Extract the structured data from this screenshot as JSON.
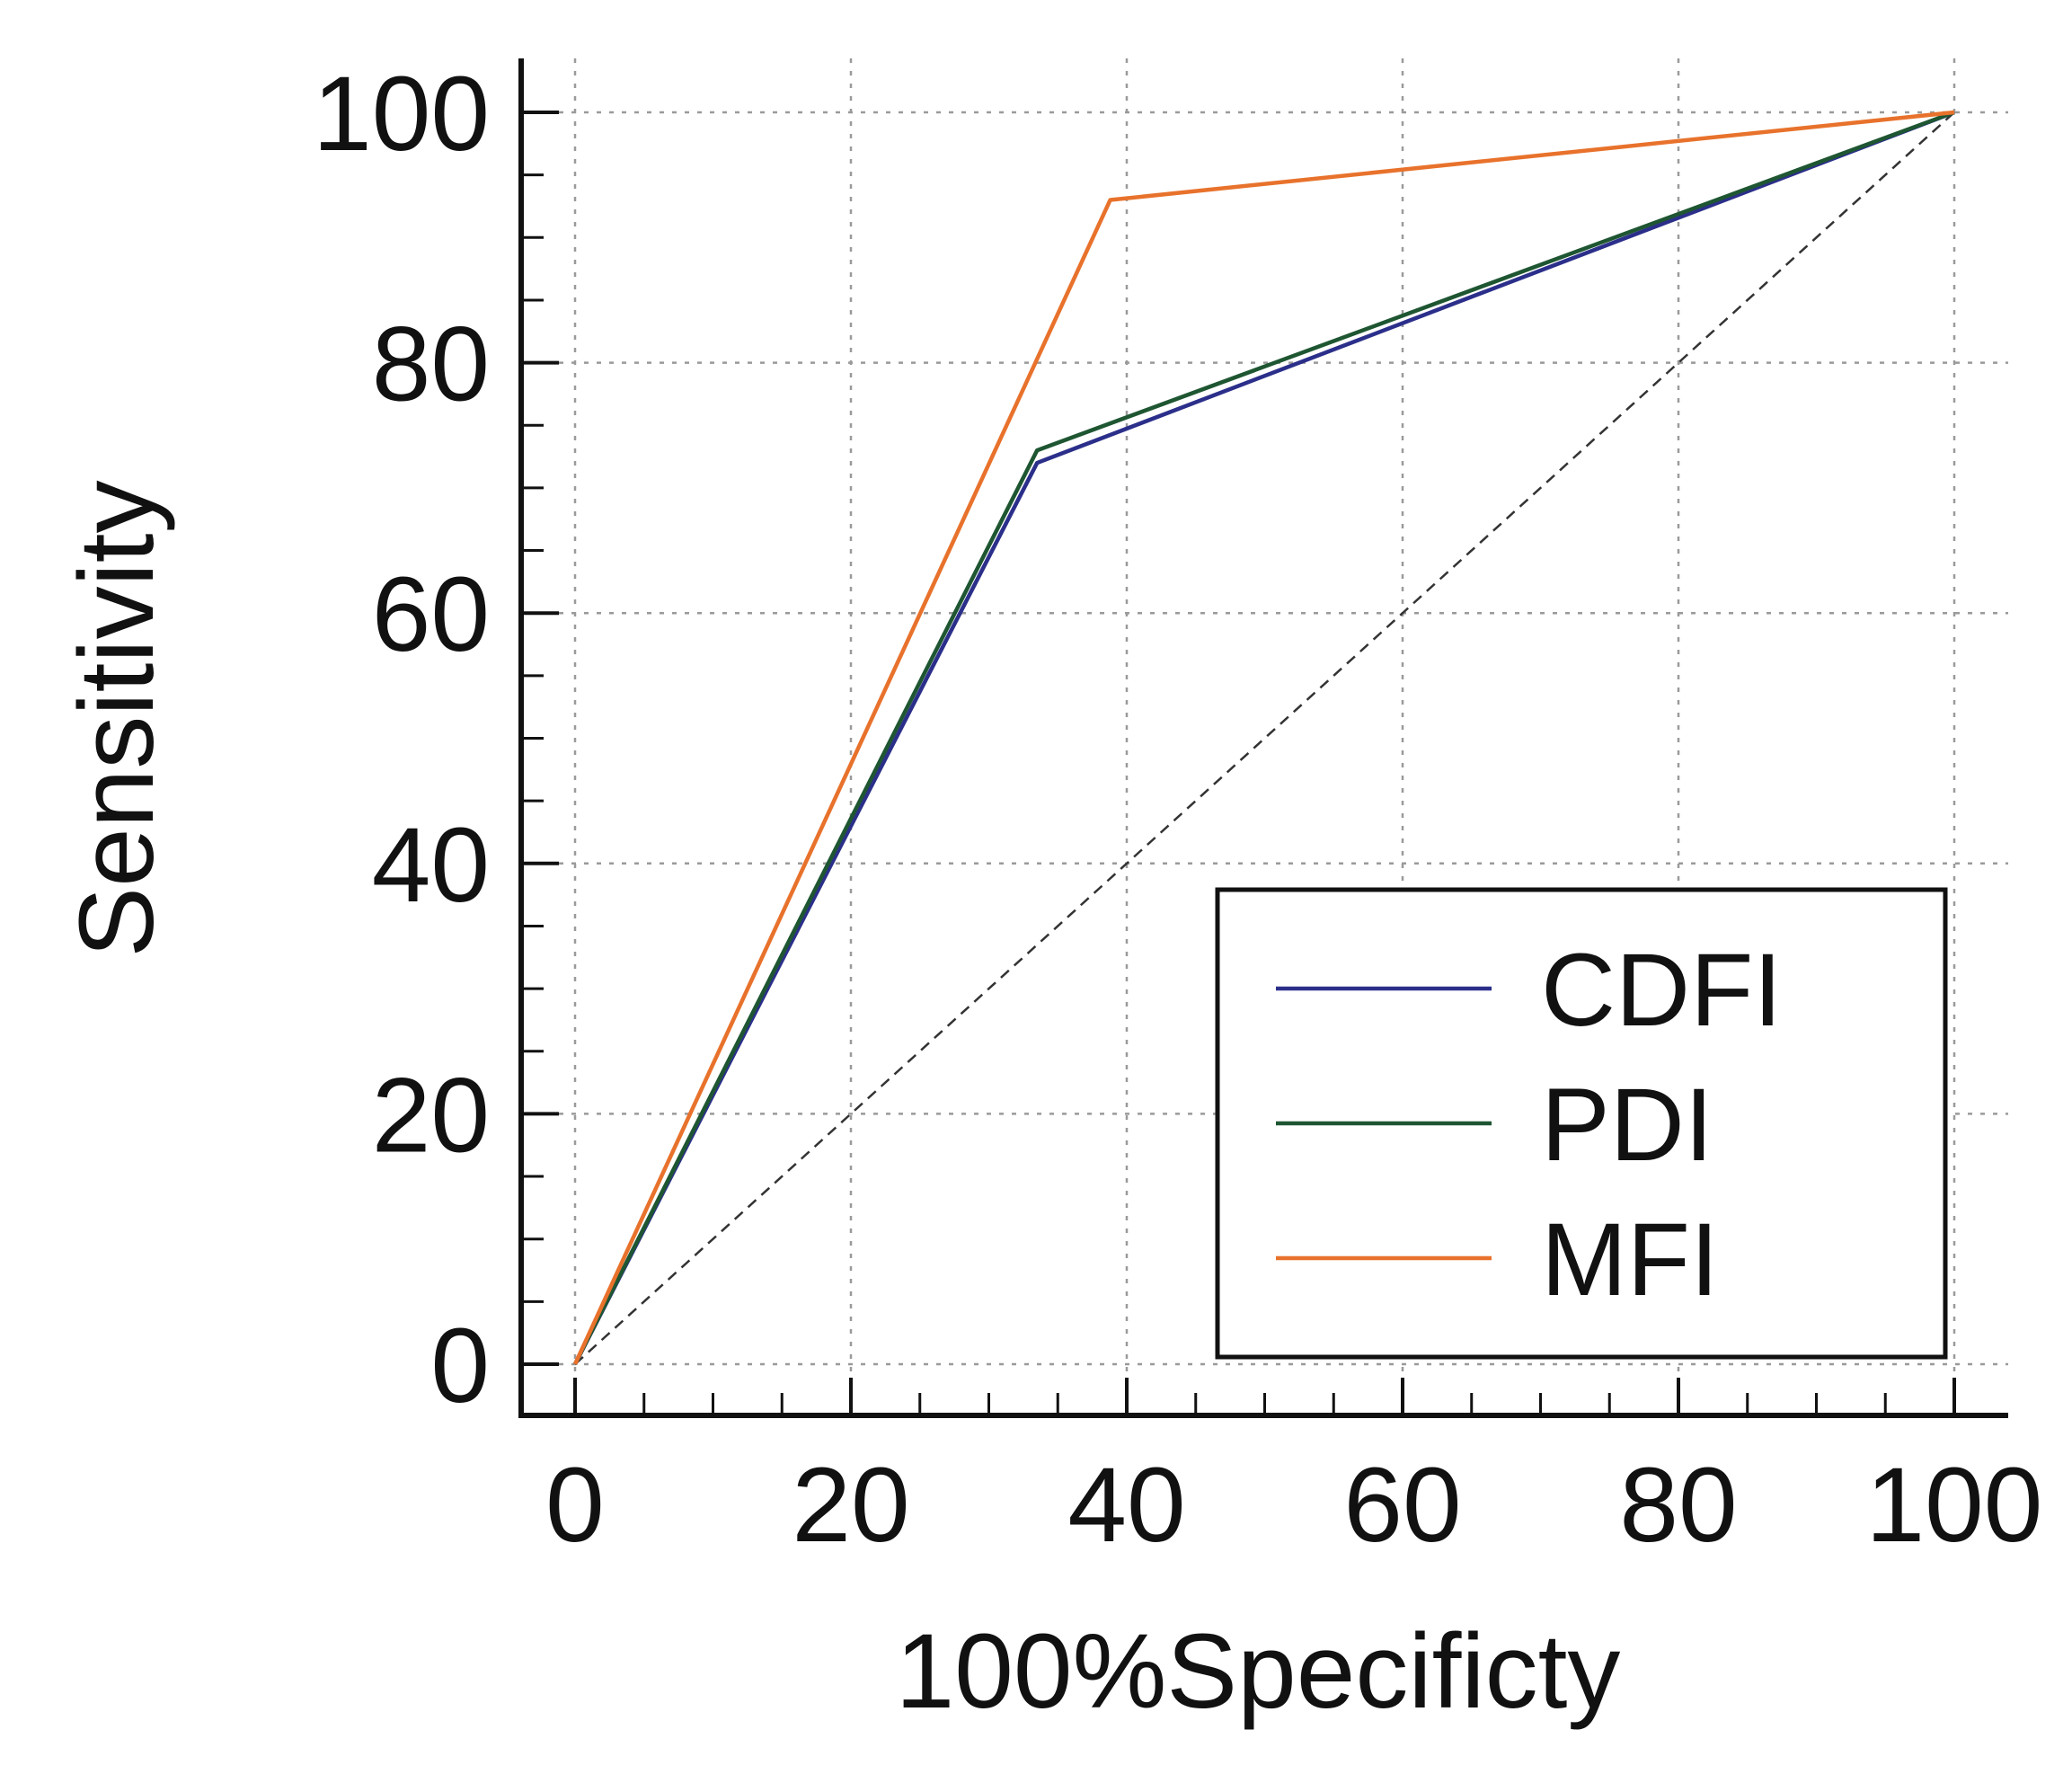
{
  "chart_data": {
    "type": "line",
    "title": "",
    "xlabel": "100%Specificty",
    "ylabel": "Sensitivity",
    "xlim": [
      0,
      100
    ],
    "ylim": [
      0,
      100
    ],
    "xticks": [
      0,
      20,
      40,
      60,
      80,
      100
    ],
    "yticks": [
      0,
      20,
      40,
      60,
      80,
      100
    ],
    "grid": true,
    "legend_position": "bottom-right",
    "series": [
      {
        "name": "CDFI",
        "color": "#2b2f8a",
        "x": [
          0,
          33.5,
          100
        ],
        "y": [
          0,
          72,
          100
        ]
      },
      {
        "name": "PDI",
        "color": "#1e5632",
        "x": [
          0,
          33.5,
          100
        ],
        "y": [
          0,
          73,
          100
        ]
      },
      {
        "name": "MFI",
        "color": "#e8722c",
        "x": [
          0,
          38.8,
          100
        ],
        "y": [
          0,
          93,
          100
        ]
      }
    ],
    "reference_line": {
      "x": [
        0,
        100
      ],
      "y": [
        0,
        100
      ],
      "style": "dashed",
      "color": "#333333"
    }
  }
}
